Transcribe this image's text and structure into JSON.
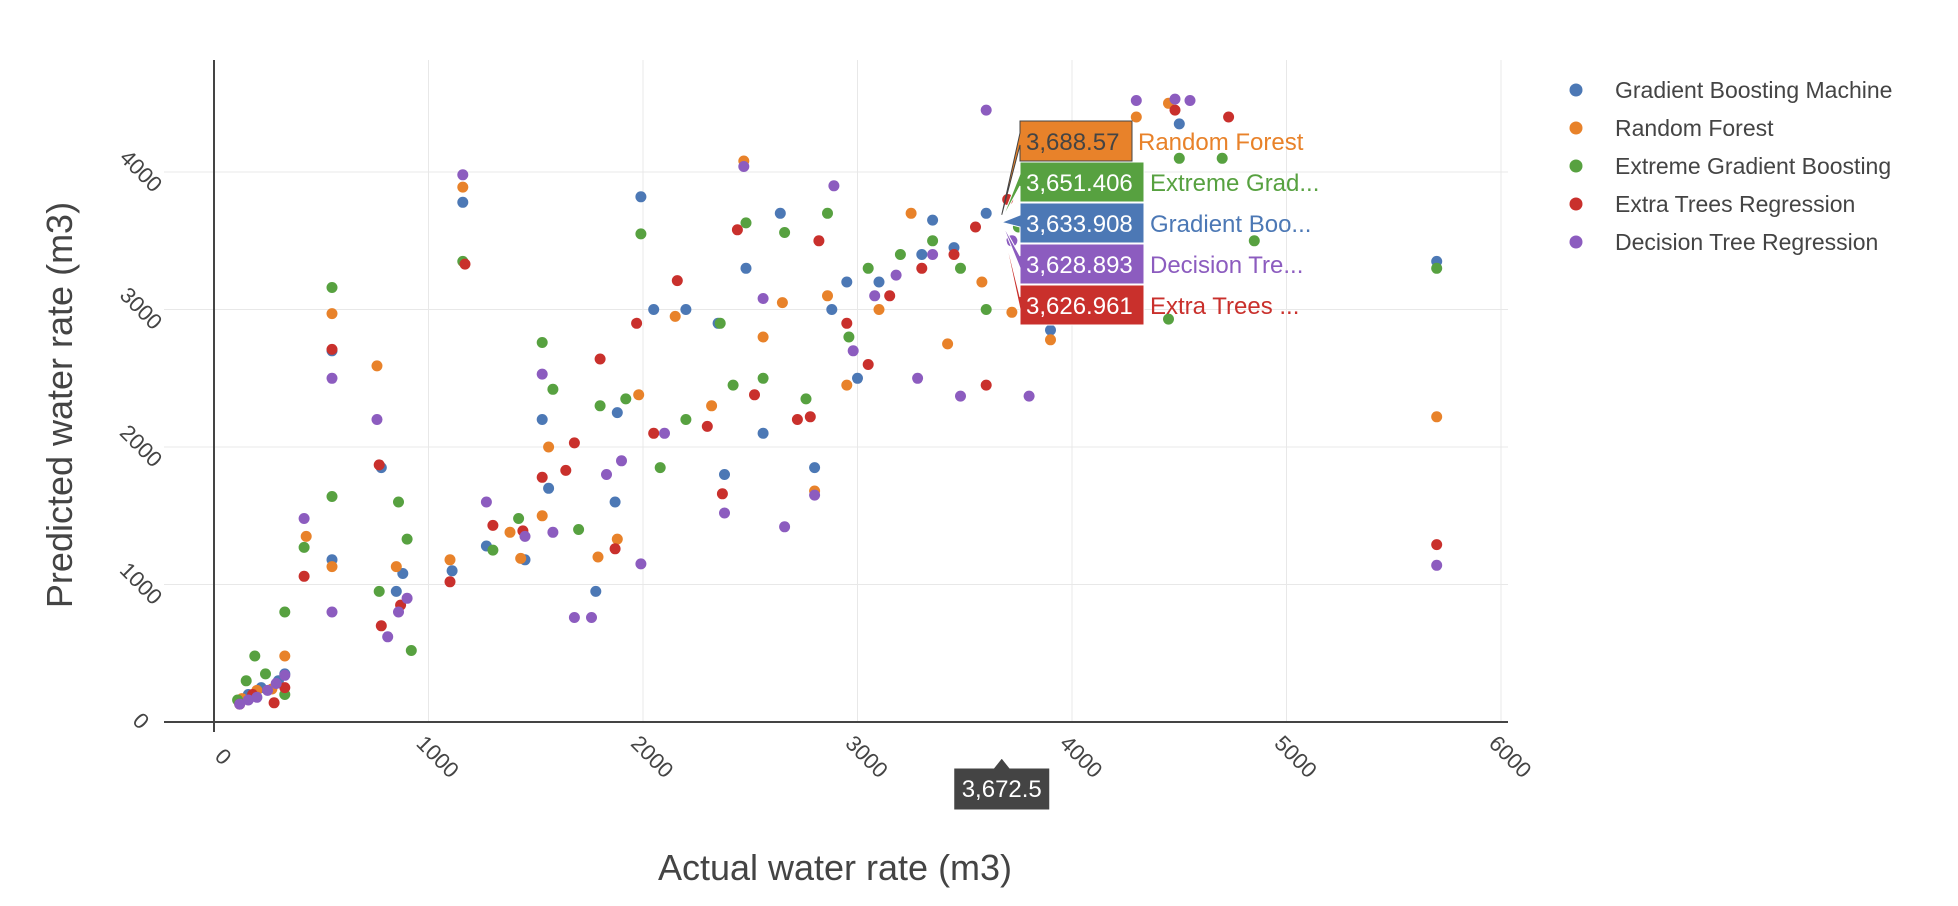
{
  "chart_data": {
    "type": "scatter",
    "xlabel": "Actual water rate (m3)",
    "ylabel": "Predicted water rate (m3)",
    "xlim": [
      0,
      6000
    ],
    "ylim": [
      0,
      4700
    ],
    "x_ticks": [
      "0",
      "1000",
      "2000",
      "3000",
      "4000",
      "5000",
      "6000"
    ],
    "y_ticks": [
      "0",
      "1000",
      "2000",
      "3000",
      "4000"
    ],
    "grid": true,
    "legend_position": "top-right",
    "series": [
      {
        "name": "Gradient Boosting Machine",
        "color": "#4c78b5",
        "points": [
          [
            120,
            150
          ],
          [
            160,
            200
          ],
          [
            220,
            250
          ],
          [
            300,
            300
          ],
          [
            330,
            350
          ],
          [
            550,
            1180
          ],
          [
            550,
            2700
          ],
          [
            780,
            1850
          ],
          [
            850,
            950
          ],
          [
            880,
            1080
          ],
          [
            1110,
            1100
          ],
          [
            1160,
            3780
          ],
          [
            1270,
            1280
          ],
          [
            1450,
            1180
          ],
          [
            1530,
            2200
          ],
          [
            1560,
            1700
          ],
          [
            1780,
            950
          ],
          [
            1870,
            1600
          ],
          [
            1880,
            2250
          ],
          [
            1990,
            3820
          ],
          [
            2050,
            3000
          ],
          [
            2200,
            3000
          ],
          [
            2350,
            2900
          ],
          [
            2380,
            1800
          ],
          [
            2480,
            3300
          ],
          [
            2560,
            2100
          ],
          [
            2640,
            3700
          ],
          [
            2800,
            1850
          ],
          [
            2880,
            3000
          ],
          [
            2950,
            3200
          ],
          [
            3000,
            2500
          ],
          [
            3100,
            3200
          ],
          [
            3300,
            3400
          ],
          [
            3350,
            3650
          ],
          [
            3450,
            3450
          ],
          [
            3600,
            3700
          ],
          [
            3900,
            2850
          ],
          [
            4500,
            4350
          ],
          [
            5700,
            3350
          ]
        ]
      },
      {
        "name": "Random Forest",
        "color": "#e8822a",
        "points": [
          [
            130,
            170
          ],
          [
            200,
            230
          ],
          [
            270,
            240
          ],
          [
            330,
            480
          ],
          [
            430,
            1350
          ],
          [
            550,
            1130
          ],
          [
            550,
            2970
          ],
          [
            760,
            2590
          ],
          [
            850,
            1130
          ],
          [
            1100,
            1180
          ],
          [
            1160,
            3890
          ],
          [
            1380,
            1380
          ],
          [
            1430,
            1190
          ],
          [
            1530,
            1500
          ],
          [
            1560,
            2000
          ],
          [
            1790,
            1200
          ],
          [
            1880,
            1330
          ],
          [
            1980,
            2380
          ],
          [
            2150,
            2950
          ],
          [
            2320,
            2300
          ],
          [
            2470,
            4080
          ],
          [
            2560,
            2800
          ],
          [
            2650,
            3050
          ],
          [
            2800,
            1680
          ],
          [
            2860,
            3100
          ],
          [
            2950,
            2450
          ],
          [
            3100,
            3000
          ],
          [
            3250,
            3700
          ],
          [
            3420,
            2750
          ],
          [
            3580,
            3200
          ],
          [
            3720,
            2980
          ],
          [
            3820,
            3700
          ],
          [
            3900,
            2780
          ],
          [
            4300,
            4400
          ],
          [
            4450,
            4500
          ],
          [
            5700,
            2220
          ]
        ]
      },
      {
        "name": "Extreme Gradient Boosting",
        "color": "#57a140",
        "points": [
          [
            110,
            160
          ],
          [
            150,
            300
          ],
          [
            190,
            480
          ],
          [
            240,
            350
          ],
          [
            330,
            800
          ],
          [
            330,
            200
          ],
          [
            420,
            1270
          ],
          [
            550,
            1640
          ],
          [
            550,
            3160
          ],
          [
            770,
            950
          ],
          [
            860,
            1600
          ],
          [
            900,
            1330
          ],
          [
            920,
            520
          ],
          [
            1160,
            3350
          ],
          [
            1300,
            1250
          ],
          [
            1420,
            1480
          ],
          [
            1530,
            2760
          ],
          [
            1580,
            2420
          ],
          [
            1700,
            1400
          ],
          [
            1800,
            2300
          ],
          [
            1920,
            2350
          ],
          [
            1990,
            3550
          ],
          [
            2080,
            1850
          ],
          [
            2200,
            2200
          ],
          [
            2360,
            2900
          ],
          [
            2420,
            2450
          ],
          [
            2480,
            3630
          ],
          [
            2560,
            2500
          ],
          [
            2660,
            3560
          ],
          [
            2760,
            2350
          ],
          [
            2860,
            3700
          ],
          [
            2960,
            2800
          ],
          [
            3050,
            3300
          ],
          [
            3200,
            3400
          ],
          [
            3350,
            3500
          ],
          [
            3480,
            3300
          ],
          [
            3600,
            3000
          ],
          [
            3750,
            3600
          ],
          [
            4450,
            2930
          ],
          [
            4500,
            4100
          ],
          [
            4700,
            4100
          ],
          [
            4850,
            3500
          ],
          [
            5700,
            3300
          ]
        ]
      },
      {
        "name": "Extra Trees Regression",
        "color": "#c9302c",
        "points": [
          [
            120,
            130
          ],
          [
            180,
            200
          ],
          [
            280,
            140
          ],
          [
            330,
            250
          ],
          [
            420,
            1060
          ],
          [
            550,
            2710
          ],
          [
            770,
            1870
          ],
          [
            780,
            700
          ],
          [
            870,
            850
          ],
          [
            1100,
            1020
          ],
          [
            1170,
            3330
          ],
          [
            1300,
            1430
          ],
          [
            1440,
            1390
          ],
          [
            1530,
            1780
          ],
          [
            1640,
            1830
          ],
          [
            1680,
            2030
          ],
          [
            1800,
            2640
          ],
          [
            1870,
            1260
          ],
          [
            1970,
            2900
          ],
          [
            2050,
            2100
          ],
          [
            2160,
            3210
          ],
          [
            2300,
            2150
          ],
          [
            2370,
            1660
          ],
          [
            2440,
            3580
          ],
          [
            2520,
            2380
          ],
          [
            2720,
            2200
          ],
          [
            2780,
            2220
          ],
          [
            2820,
            3500
          ],
          [
            2950,
            2900
          ],
          [
            3050,
            2600
          ],
          [
            3150,
            3100
          ],
          [
            3300,
            3300
          ],
          [
            3450,
            3400
          ],
          [
            3550,
            3600
          ],
          [
            3600,
            2450
          ],
          [
            3700,
            3800
          ],
          [
            3900,
            4000
          ],
          [
            4480,
            4450
          ],
          [
            4730,
            4400
          ],
          [
            5700,
            1290
          ]
        ]
      },
      {
        "name": "Decision Tree Regression",
        "color": "#8c5cbf",
        "points": [
          [
            120,
            130
          ],
          [
            160,
            160
          ],
          [
            200,
            180
          ],
          [
            250,
            230
          ],
          [
            290,
            280
          ],
          [
            330,
            340
          ],
          [
            420,
            1480
          ],
          [
            550,
            2500
          ],
          [
            550,
            800
          ],
          [
            760,
            2200
          ],
          [
            810,
            620
          ],
          [
            860,
            800
          ],
          [
            900,
            900
          ],
          [
            1160,
            3980
          ],
          [
            1270,
            1600
          ],
          [
            1450,
            1350
          ],
          [
            1530,
            2530
          ],
          [
            1580,
            1380
          ],
          [
            1680,
            760
          ],
          [
            1760,
            760
          ],
          [
            1830,
            1800
          ],
          [
            1900,
            1900
          ],
          [
            1990,
            1150
          ],
          [
            2100,
            2100
          ],
          [
            2380,
            1520
          ],
          [
            2470,
            4040
          ],
          [
            2560,
            3080
          ],
          [
            2660,
            1420
          ],
          [
            2800,
            1650
          ],
          [
            2890,
            3900
          ],
          [
            2980,
            2700
          ],
          [
            3080,
            3100
          ],
          [
            3180,
            3250
          ],
          [
            3280,
            2500
          ],
          [
            3350,
            3400
          ],
          [
            3480,
            2370
          ],
          [
            3600,
            4450
          ],
          [
            3720,
            3500
          ],
          [
            3800,
            2370
          ],
          [
            3900,
            3000
          ],
          [
            4300,
            4520
          ],
          [
            4480,
            4530
          ],
          [
            4550,
            4520
          ],
          [
            5700,
            1140
          ]
        ]
      }
    ],
    "hover": {
      "x_value": "3,672.5",
      "items": [
        {
          "value": "3,688.57",
          "name": "Random Forest",
          "y": 3688.57,
          "color": "#e8822a"
        },
        {
          "value": "3,651.406",
          "name": "Extreme Grad...",
          "y": 3651.406,
          "color": "#57a140"
        },
        {
          "value": "3,633.908",
          "name": "Gradient Boo...",
          "y": 3633.908,
          "color": "#4c78b5"
        },
        {
          "value": "3,628.893",
          "name": "Decision Tre...",
          "y": 3628.893,
          "color": "#8c5cbf"
        },
        {
          "value": "3,626.961",
          "name": "Extra Trees ...",
          "y": 3626.961,
          "color": "#c9302c"
        }
      ]
    }
  }
}
